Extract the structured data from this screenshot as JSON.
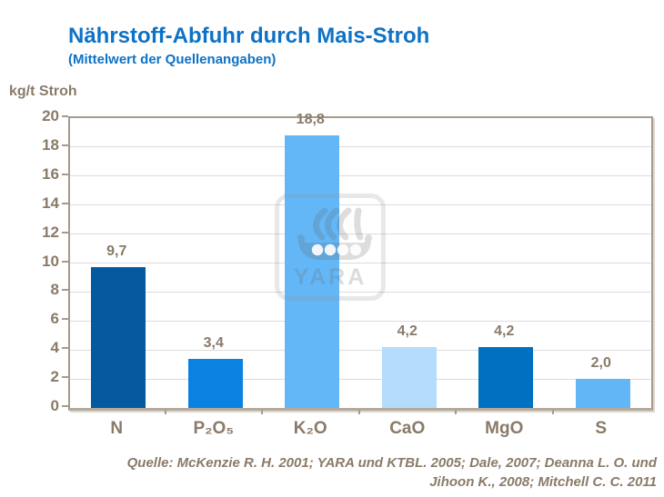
{
  "header": {
    "title": "Nährstoff-Abfuhr durch Mais-Stroh",
    "subtitle": "(Mittelwert der Quellenangaben)"
  },
  "chart_data": {
    "type": "bar",
    "title": "Nährstoff-Abfuhr durch Mais-Stroh",
    "subtitle": "(Mittelwert der Quellenangaben)",
    "ylabel": "kg/t Stroh",
    "categories": [
      "N",
      "P₂O₅",
      "K₂O",
      "CaO",
      "MgO",
      "S"
    ],
    "values": [
      9.7,
      3.4,
      18.8,
      4.2,
      4.2,
      2.0
    ],
    "value_labels": [
      "9,7",
      "3,4",
      "18,8",
      "4,2",
      "4,2",
      "2,0"
    ],
    "bar_colors": [
      "#055a9f",
      "#0b82e2",
      "#63b7f7",
      "#b5dcfa",
      "#0070c0",
      "#62b6f6"
    ],
    "ylim": [
      0,
      20
    ],
    "yticks": [
      0,
      2,
      4,
      6,
      8,
      10,
      12,
      14,
      16,
      18,
      20
    ],
    "grid": true,
    "legend": false,
    "xlabel": ""
  },
  "watermark": {
    "brand": "YARA",
    "icon": "viking-ship-icon"
  },
  "source": {
    "line1": "Quelle: McKenzie R. H. 2001; YARA und KTBL. 2005; Dale, 2007; Deanna L. O. und",
    "line2": "Jihoon K.,  2008; Mitchell C. C. 2011"
  },
  "colors": {
    "title_blue": "#0d72c6",
    "axis_text": "#8a7a68",
    "axis_line": "#a69a8c",
    "gridline": "#dcdcdc",
    "watermark_gray": "#bbbbbb"
  }
}
